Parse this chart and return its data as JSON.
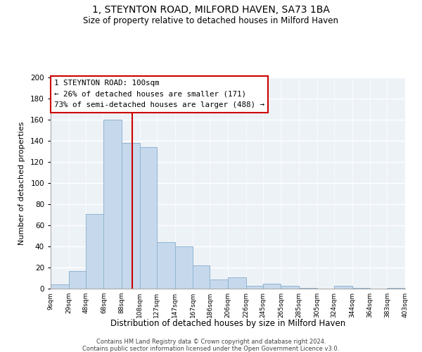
{
  "title": "1, STEYNTON ROAD, MILFORD HAVEN, SA73 1BA",
  "subtitle": "Size of property relative to detached houses in Milford Haven",
  "xlabel": "Distribution of detached houses by size in Milford Haven",
  "ylabel": "Number of detached properties",
  "bar_color": "#c6d9ec",
  "bar_edgecolor": "#92b4d0",
  "vline_x": 100,
  "vline_color": "#cc0000",
  "annotation_title": "1 STEYNTON ROAD: 100sqm",
  "annotation_line1": "← 26% of detached houses are smaller (171)",
  "annotation_line2": "73% of semi-detached houses are larger (488) →",
  "annotation_box_color": "white",
  "annotation_box_edgecolor": "#cc0000",
  "bin_edges": [
    9,
    29,
    48,
    68,
    88,
    108,
    127,
    147,
    167,
    186,
    206,
    226,
    245,
    265,
    285,
    305,
    324,
    344,
    364,
    383,
    403
  ],
  "bin_labels": [
    "9sqm",
    "29sqm",
    "48sqm",
    "68sqm",
    "88sqm",
    "108sqm",
    "127sqm",
    "147sqm",
    "167sqm",
    "186sqm",
    "206sqm",
    "226sqm",
    "245sqm",
    "265sqm",
    "285sqm",
    "305sqm",
    "324sqm",
    "344sqm",
    "364sqm",
    "383sqm",
    "403sqm"
  ],
  "counts": [
    4,
    17,
    71,
    160,
    138,
    134,
    44,
    40,
    22,
    9,
    11,
    3,
    5,
    3,
    1,
    0,
    3,
    1,
    0,
    1
  ],
  "ylim": [
    0,
    200
  ],
  "yticks": [
    0,
    20,
    40,
    60,
    80,
    100,
    120,
    140,
    160,
    180,
    200
  ],
  "footer1": "Contains HM Land Registry data © Crown copyright and database right 2024.",
  "footer2": "Contains public sector information licensed under the Open Government Licence v3.0.",
  "background_color": "#edf2f7",
  "grid_color": "#ffffff",
  "spine_color": "#aaaaaa"
}
